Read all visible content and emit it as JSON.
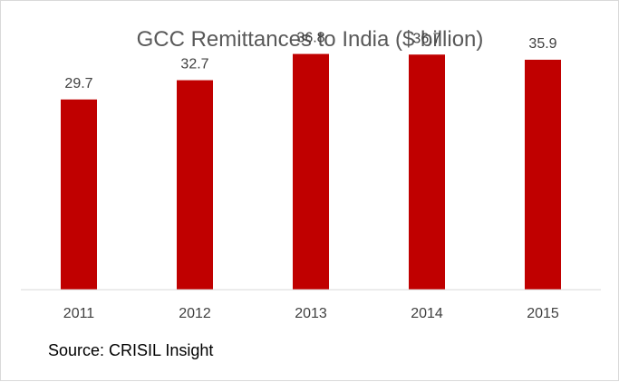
{
  "chart_data": {
    "type": "bar",
    "title": "GCC Remittances to India ($ billion)",
    "categories": [
      "2011",
      "2012",
      "2013",
      "2014",
      "2015"
    ],
    "values": [
      29.7,
      32.7,
      36.8,
      36.7,
      35.9
    ],
    "value_labels": [
      "29.7",
      "32.7",
      "36.8",
      "36.7",
      "35.9"
    ],
    "xlabel": "",
    "ylabel": "",
    "ylim": [
      0,
      40
    ],
    "grid": false,
    "legend": "none",
    "colors": {
      "bar": "#c00000",
      "axis": "#d9d9d9",
      "title": "#595959",
      "labels": "#404040"
    }
  },
  "footer": {
    "source": "Source: CRISIL Insight"
  }
}
